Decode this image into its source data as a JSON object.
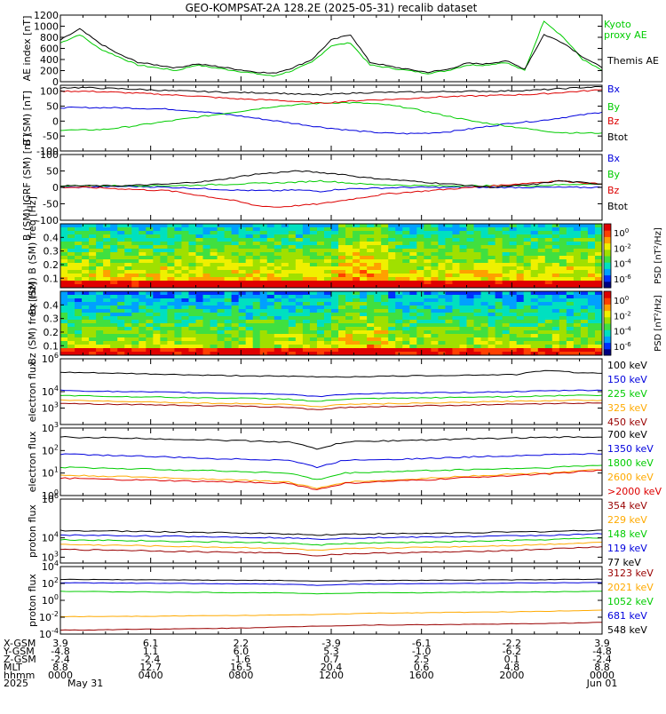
{
  "chart_data": [
    {
      "type": "line",
      "title": "GEO-KOMPSAT-2A 128.2E (2025-05-31) recalib dataset",
      "ylabel": "AE index [nT]",
      "ylim": [
        0,
        1200
      ],
      "yticks": [
        "0",
        "200",
        "400",
        "600",
        "800",
        "1000",
        "1200"
      ],
      "series": [
        {
          "name": "Kyoto proxy AE",
          "color": "#00cc00",
          "values": [
            700,
            850,
            600,
            450,
            300,
            250,
            200,
            300,
            250,
            200,
            150,
            100,
            200,
            350,
            650,
            700,
            300,
            250,
            200,
            150,
            200,
            300,
            300,
            350,
            200,
            1100,
            800,
            400,
            200
          ]
        },
        {
          "name": "Themis AE",
          "color": "#000000",
          "values": [
            750,
            950,
            700,
            500,
            350,
            300,
            250,
            320,
            280,
            230,
            180,
            150,
            250,
            400,
            750,
            850,
            350,
            280,
            220,
            170,
            220,
            330,
            320,
            380,
            230,
            850,
            700,
            450,
            250
          ]
        }
      ]
    },
    {
      "type": "line",
      "ylabel": "B (SM) [nT]",
      "ylim": [
        -100,
        120
      ],
      "yticks": [
        "100",
        "50",
        "0",
        "-50",
        "-100"
      ],
      "series": [
        {
          "name": "Bx",
          "color": "#0000dd",
          "values": [
            45,
            45,
            45,
            44,
            42,
            40,
            35,
            28,
            20,
            10,
            0,
            -10,
            -20,
            -28,
            -35,
            -40,
            -42,
            -40,
            -35,
            -25,
            -15,
            -5,
            0,
            10,
            20,
            30
          ]
        },
        {
          "name": "By",
          "color": "#00cc00",
          "values": [
            -30,
            -30,
            -28,
            -20,
            -10,
            0,
            10,
            20,
            30,
            40,
            50,
            55,
            60,
            62,
            60,
            55,
            45,
            30,
            15,
            0,
            -10,
            -20,
            -30,
            -38,
            -40,
            -40
          ]
        },
        {
          "name": "Bz",
          "color": "#dd0000",
          "values": [
            100,
            100,
            98,
            95,
            92,
            88,
            85,
            80,
            75,
            72,
            70,
            65,
            60,
            65,
            70,
            72,
            75,
            80,
            82,
            84,
            86,
            88,
            90,
            95,
            100,
            105
          ]
        },
        {
          "name": "Btot",
          "color": "#000000",
          "values": [
            112,
            112,
            110,
            108,
            105,
            102,
            100,
            98,
            96,
            95,
            94,
            90,
            88,
            92,
            95,
            96,
            97,
            98,
            99,
            100,
            100,
            102,
            104,
            108,
            112,
            115
          ]
        }
      ]
    },
    {
      "type": "line",
      "ylabel": "B (SM)-IGRF (SM) [nT]",
      "ylim": [
        -100,
        100
      ],
      "yticks": [
        "100",
        "50",
        "0",
        "-50",
        "-100"
      ],
      "series": [
        {
          "name": "Bx",
          "color": "#0000dd",
          "values": [
            0,
            0,
            2,
            3,
            2,
            0,
            -2,
            -5,
            -8,
            -10,
            -10,
            -8,
            -12,
            -5,
            -3,
            -2,
            0,
            0,
            0,
            0,
            0,
            0,
            0,
            0,
            0,
            0
          ]
        },
        {
          "name": "By",
          "color": "#00cc00",
          "values": [
            5,
            5,
            5,
            5,
            5,
            5,
            6,
            8,
            10,
            12,
            14,
            16,
            20,
            15,
            10,
            8,
            6,
            5,
            5,
            5,
            5,
            5,
            5,
            8,
            10,
            10
          ]
        },
        {
          "name": "Bz",
          "color": "#dd0000",
          "values": [
            0,
            0,
            -2,
            -5,
            -8,
            -10,
            -20,
            -30,
            -40,
            -55,
            -60,
            -55,
            -50,
            -40,
            -30,
            -20,
            -15,
            -10,
            -5,
            0,
            5,
            10,
            15,
            20,
            15,
            10
          ]
        },
        {
          "name": "Btot",
          "color": "#000000",
          "values": [
            5,
            5,
            5,
            5,
            8,
            10,
            15,
            20,
            30,
            40,
            45,
            50,
            45,
            40,
            30,
            25,
            20,
            15,
            10,
            5,
            0,
            5,
            10,
            20,
            15,
            10
          ]
        }
      ]
    },
    {
      "type": "heatmap",
      "ylabel": "Bx (SM) B (SM) freq [Hz]",
      "ylim": [
        0.03,
        0.5
      ],
      "yticks": [
        "0.4",
        "0.3",
        "0.2",
        "0.1"
      ],
      "colorbar_label": "PSD [nT²/Hz]",
      "colorbar_ticks": [
        "10^0",
        "10^-2",
        "10^-4",
        "10^-6"
      ]
    },
    {
      "type": "heatmap",
      "ylabel": "Bz (SM) freq [Hz]",
      "ylim": [
        0.03,
        0.5
      ],
      "yticks": [
        "0.4",
        "0.3",
        "0.2",
        "0.1"
      ],
      "colorbar_label": "PSD [nT²/Hz]",
      "colorbar_ticks": [
        "10^0",
        "10^-2",
        "10^-4",
        "10^-6"
      ]
    },
    {
      "type": "line",
      "ylabel": "electron flux",
      "scale": "log",
      "ylim": [
        100,
        1000000
      ],
      "yticks": [
        "10^6",
        "10^4",
        "10^3"
      ],
      "series": [
        {
          "name": "100 keV",
          "color": "#000000",
          "values": [
            150000,
            140000,
            130000,
            120000,
            110000,
            100000,
            95000,
            90000,
            85000,
            80000,
            80000,
            85000,
            90000,
            95000,
            100000,
            105000,
            110000,
            200000,
            150000,
            130000
          ]
        },
        {
          "name": "150 keV",
          "color": "#0000dd",
          "values": [
            12000,
            11000,
            10000,
            9500,
            9000,
            8500,
            8000,
            7500,
            7000,
            5000,
            7000,
            7500,
            8000,
            8500,
            9000,
            9500,
            10000,
            11000,
            12000,
            12000
          ]
        },
        {
          "name": "225 keV",
          "color": "#00cc00",
          "values": [
            6000,
            5500,
            5000,
            4800,
            4500,
            4200,
            4000,
            3800,
            3500,
            2500,
            3500,
            3800,
            4000,
            4200,
            4500,
            4800,
            5000,
            5500,
            6000,
            6000
          ]
        },
        {
          "name": "325 keV",
          "color": "#ffaa00",
          "values": [
            3000,
            2800,
            2600,
            2400,
            2200,
            2000,
            1900,
            1800,
            1700,
            1200,
            1700,
            1800,
            1900,
            2000,
            2200,
            2400,
            2600,
            2800,
            3000,
            3000
          ]
        },
        {
          "name": "450 keV",
          "color": "#990000",
          "values": [
            2000,
            1800,
            1700,
            1600,
            1500,
            1400,
            1300,
            1200,
            1100,
            800,
            1100,
            1200,
            1300,
            1400,
            1500,
            1600,
            1700,
            1800,
            2000,
            2000
          ]
        }
      ]
    },
    {
      "type": "line",
      "ylabel": "electron flux",
      "scale": "log",
      "ylim": [
        1,
        1000
      ],
      "yticks": [
        "10^3",
        "10^2",
        "10^1",
        "10^0"
      ],
      "series": [
        {
          "name": "700 keV",
          "color": "#000000",
          "values": [
            400,
            380,
            360,
            340,
            320,
            300,
            280,
            260,
            240,
            120,
            240,
            260,
            280,
            300,
            320,
            340,
            360,
            380,
            400,
            400
          ]
        },
        {
          "name": "1350 keV",
          "color": "#0000dd",
          "values": [
            70,
            65,
            60,
            55,
            50,
            45,
            42,
            40,
            38,
            18,
            38,
            40,
            42,
            45,
            50,
            55,
            60,
            65,
            70,
            70
          ]
        },
        {
          "name": "1800 keV",
          "color": "#00cc00",
          "values": [
            18,
            17,
            16,
            15,
            14,
            13,
            12,
            11,
            10,
            5,
            10,
            11,
            12,
            13,
            14,
            15,
            16,
            17,
            20,
            22
          ]
        },
        {
          "name": "2600 keV",
          "color": "#ffaa00",
          "values": [
            8,
            7.5,
            7,
            6.5,
            6,
            5.5,
            5,
            4.5,
            4,
            2,
            4,
            4.5,
            5,
            6,
            7,
            8,
            9,
            10,
            12,
            14
          ]
        },
        {
          "name": ">2000 keV",
          "color": "#dd0000",
          "values": [
            6,
            5.5,
            5,
            4.8,
            4.5,
            4.2,
            4,
            3.8,
            3.5,
            1.8,
            3.5,
            4,
            4.5,
            5,
            6,
            7,
            8,
            9,
            11,
            13
          ]
        }
      ]
    },
    {
      "type": "line",
      "ylabel": "proton flux",
      "scale": "log",
      "ylim": [
        500,
        1000000
      ],
      "yticks": [
        "10^6",
        "10^4",
        "10^3"
      ],
      "series": [
        {
          "name": "354 keV",
          "color": "#990000",
          "values": [
            2500,
            2400,
            2300,
            2200,
            2000,
            1900,
            1800,
            1700,
            1600,
            1200,
            1500,
            1600,
            1700,
            1800,
            1900,
            2100,
            2300,
            2600,
            3000,
            3500
          ]
        },
        {
          "name": "229 keV",
          "color": "#ffaa00",
          "values": [
            4500,
            4300,
            4100,
            3900,
            3600,
            3400,
            3200,
            3000,
            2800,
            2200,
            2700,
            2900,
            3100,
            3300,
            3500,
            3800,
            4100,
            4600,
            5200,
            6000
          ]
        },
        {
          "name": "148 keV",
          "color": "#00cc00",
          "values": [
            8000,
            7700,
            7400,
            7000,
            6600,
            6200,
            5900,
            5600,
            5300,
            4200,
            5100,
            5400,
            5700,
            6000,
            6400,
            6800,
            7300,
            8000,
            9000,
            10000
          ]
        },
        {
          "name": "119 keV",
          "color": "#0000dd",
          "values": [
            14000,
            13500,
            13000,
            12500,
            12000,
            11500,
            11000,
            10500,
            10000,
            8500,
            9800,
            10200,
            10600,
            11000,
            11500,
            12000,
            12800,
            13500,
            14500,
            16000
          ]
        },
        {
          "name": "77 keV",
          "color": "#000000",
          "values": [
            24000,
            23000,
            22000,
            21000,
            20000,
            19000,
            18000,
            17000,
            16000,
            14000,
            15500,
            16000,
            16500,
            17000,
            18000,
            19000,
            20000,
            21000,
            23000,
            25000
          ]
        }
      ]
    },
    {
      "type": "line",
      "ylabel": "proton flux",
      "scale": "log",
      "ylim": [
        0.0001,
        10000
      ],
      "yticks": [
        "10^4",
        "10^2",
        "10^0",
        "10^-2",
        "10^-4"
      ],
      "series": [
        {
          "name": "3123 keV",
          "color": "#990000",
          "values": [
            0.0003,
            0.0003,
            0.00035,
            0.0004,
            0.0004,
            0.00045,
            0.0005,
            0.0006,
            0.0007,
            0.0009,
            0.001,
            0.0012,
            0.0012,
            0.0013,
            0.0014,
            0.0015,
            0.0016,
            0.0018,
            0.002,
            0.0025
          ]
        },
        {
          "name": "2021 keV",
          "color": "#ffaa00",
          "values": [
            0.012,
            0.012,
            0.013,
            0.013,
            0.014,
            0.015,
            0.016,
            0.017,
            0.018,
            0.02,
            0.025,
            0.03,
            0.032,
            0.035,
            0.038,
            0.04,
            0.045,
            0.05,
            0.06,
            0.07
          ]
        },
        {
          "name": "1052 keV",
          "color": "#00cc00",
          "values": [
            12,
            11,
            10,
            10,
            9,
            9,
            8,
            8,
            8,
            6,
            7,
            8,
            8,
            8,
            9,
            9,
            10,
            10,
            11,
            12
          ]
        },
        {
          "name": "681 keV",
          "color": "#0000dd",
          "values": [
            120,
            115,
            110,
            105,
            100,
            95,
            90,
            85,
            80,
            60,
            80,
            85,
            90,
            95,
            100,
            105,
            110,
            115,
            120,
            125
          ]
        },
        {
          "name": "548 keV",
          "color": "#000000",
          "values": [
            300,
            290,
            280,
            270,
            260,
            250,
            240,
            230,
            220,
            180,
            210,
            220,
            230,
            240,
            250,
            260,
            270,
            280,
            300,
            320
          ]
        }
      ]
    }
  ],
  "ephemeris": {
    "row_labels": [
      "X-GSM",
      "Y-GSM",
      "Z-GSM",
      "MLT",
      "hhmm",
      "2025"
    ],
    "columns": [
      {
        "values": [
          "3.9",
          "-4.8",
          "-2.4",
          "8.8",
          "0000",
          "May 31"
        ]
      },
      {
        "values": [
          "6.1",
          "1.1",
          "-2.4",
          "12.7",
          "0400",
          ""
        ]
      },
      {
        "values": [
          "2.2",
          "6.0",
          "-1.6",
          "16.5",
          "0800",
          ""
        ]
      },
      {
        "values": [
          "-3.9",
          "5.3",
          "0.7",
          "20.4",
          "1200",
          ""
        ]
      },
      {
        "values": [
          "-6.1",
          "-1.0",
          "2.5",
          "0.6",
          "1600",
          ""
        ]
      },
      {
        "values": [
          "-2.2",
          "-6.2",
          "0.1",
          "4.8",
          "2000",
          ""
        ]
      },
      {
        "values": [
          "3.9",
          "-4.8",
          "-2.4",
          "8.8",
          "0000",
          "Jun 01"
        ]
      }
    ]
  }
}
